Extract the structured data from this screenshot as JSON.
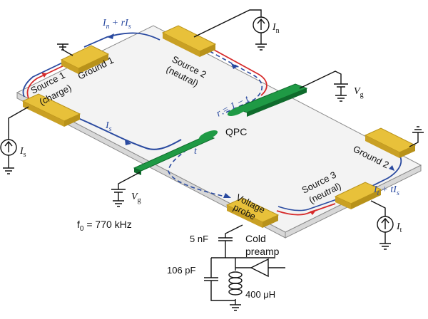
{
  "colors": {
    "contact": "#e8c13a",
    "contact_dark": "#b8921a",
    "gate": "#1f9a45",
    "gate_dark": "#0f6b2c",
    "charge_path": "#2a4aa0",
    "neutral_path": "#d62a2a",
    "chip": "#f3f3f3"
  },
  "contacts": {
    "ground1": "Ground 1",
    "source2_a": "Source 2",
    "source2_b": "(neutral)",
    "source1_a": "Source 1",
    "source1_b": "(charge)",
    "ground2": "Ground 2",
    "source3_a": "Source 3",
    "source3_b": "(neutral)",
    "probe_a": "Voltage",
    "probe_b": "probe"
  },
  "labels": {
    "qpc": "QPC",
    "reflection": "r = 1 − t",
    "transmission": "t",
    "current_s": "I",
    "current_s_sub": "s",
    "current_top": "I",
    "current_top_sub": "n",
    "current_top_rest": "+ rI",
    "current_top_rest_sub": "s",
    "current_right": "I",
    "current_right_sub": "t",
    "current_right_rest": "+ tI",
    "current_right_rest_sub": "s",
    "source_Is": "I",
    "source_Is_sub": "s",
    "source_In": "I",
    "source_In_sub": "n",
    "source_It": "I",
    "source_It_sub": "t",
    "vg_top": "V",
    "vg_top_sub": "g",
    "vg_bottom": "V",
    "vg_bottom_sub": "g",
    "frequency": "f",
    "frequency_sub": "0",
    "frequency_rest": " = 770 kHz",
    "cap_5nf": "5 nF",
    "cap_106pf": "106 pF",
    "inductor": "400 μH",
    "preamp_a": "Cold",
    "preamp_b": "preamp"
  }
}
